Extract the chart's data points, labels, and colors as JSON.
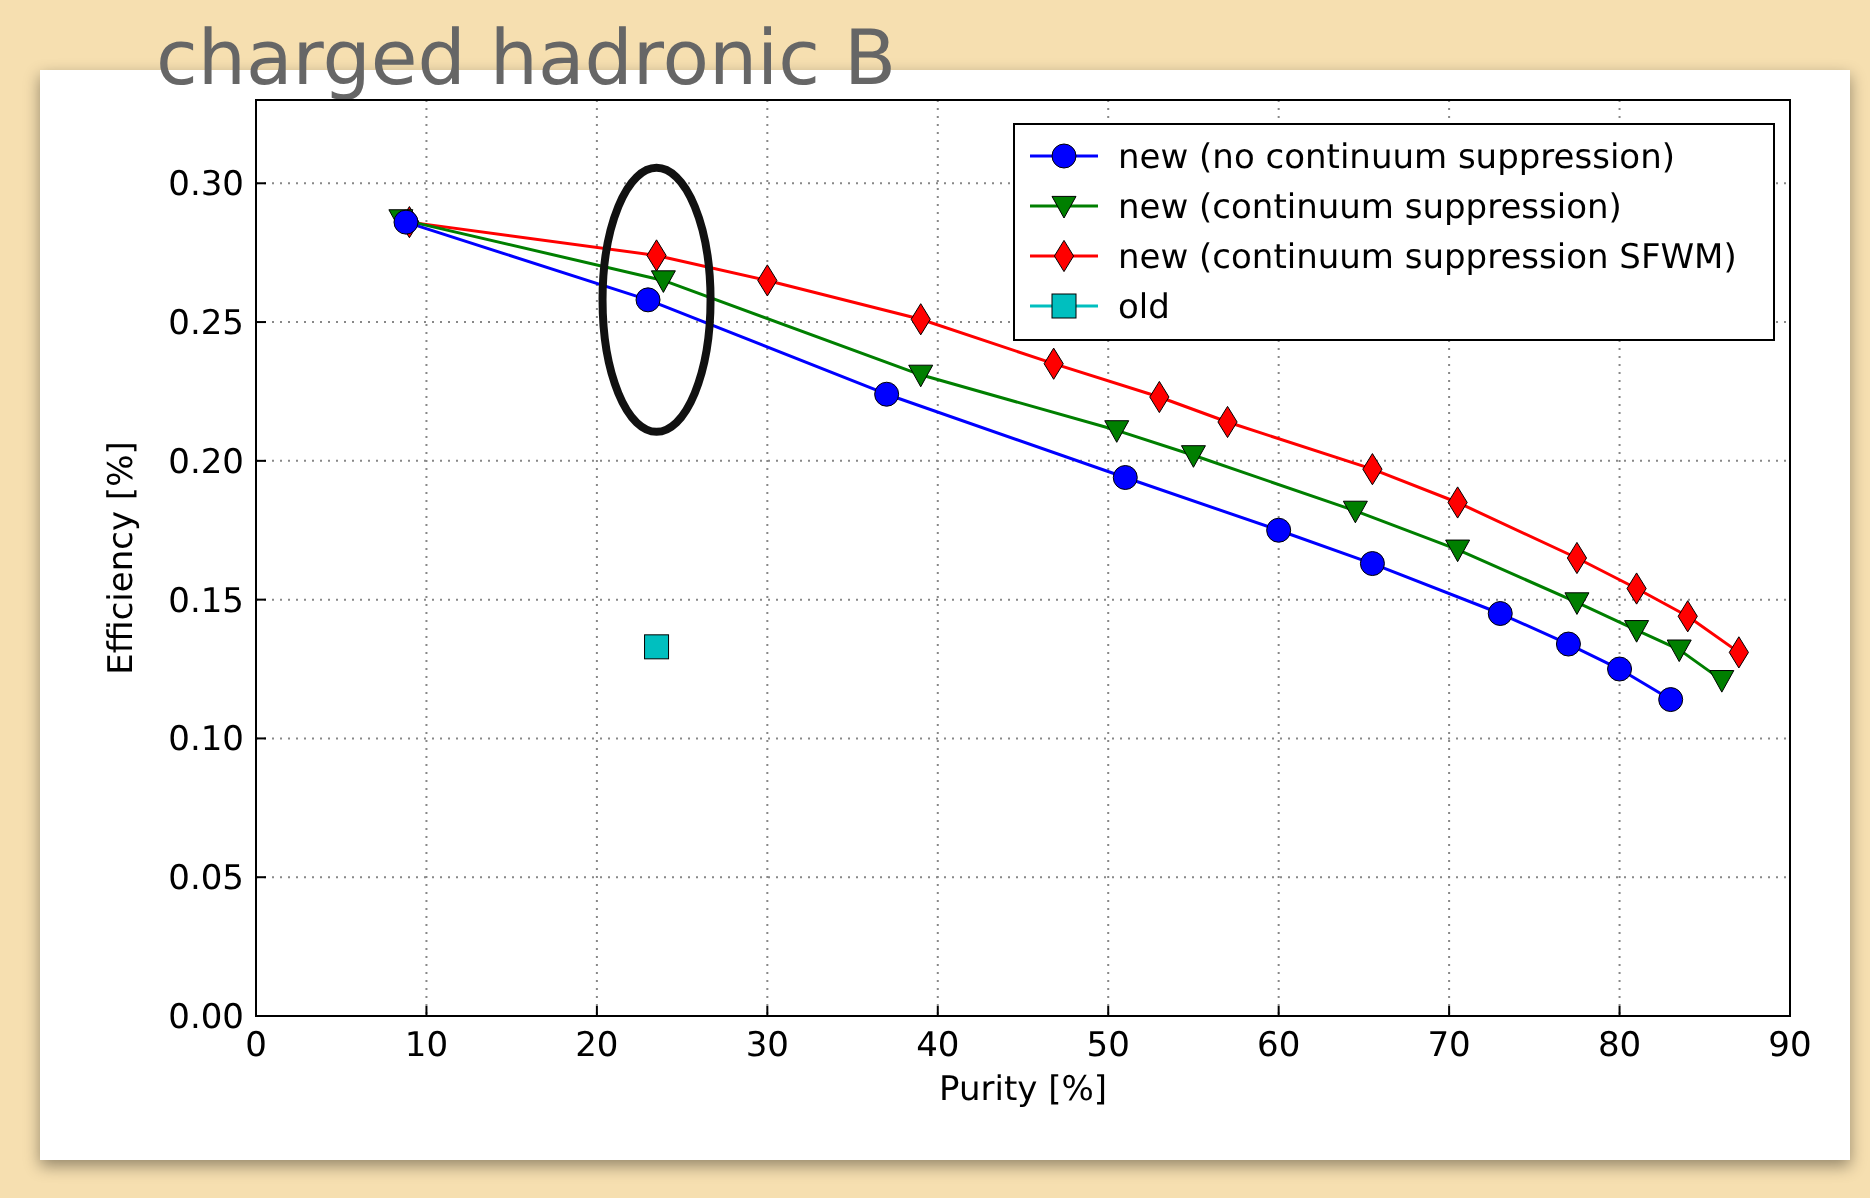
{
  "chart_data": {
    "type": "line",
    "title": "charged hadronic B",
    "xlabel": "Purity [%]",
    "ylabel": "Efficiency [%]",
    "xlim": [
      0,
      90
    ],
    "xticks": [
      0,
      10,
      20,
      30,
      40,
      50,
      60,
      70,
      80,
      90
    ],
    "ylim": [
      0,
      0.33
    ],
    "yticks": [
      {
        "value": 0,
        "label": "0.00"
      },
      0.05,
      {
        "value": 0.1,
        "label": "0.10"
      },
      0.15,
      {
        "value": 0.2,
        "label": "0.20"
      },
      0.25,
      {
        "value": 0.3,
        "label": "0.30"
      }
    ],
    "grid": true,
    "legend": "top right",
    "series": [
      {
        "name": "new (no continuum suppression)",
        "color": "#0000ff",
        "marker": "circle",
        "x": [
          8.8,
          23,
          37,
          51,
          60,
          65.5,
          73,
          77,
          80,
          83
        ],
        "values": [
          0.286,
          0.258,
          0.224,
          0.194,
          0.175,
          0.163,
          0.145,
          0.134,
          0.125,
          0.114
        ]
      },
      {
        "name": "new (continuum suppression)",
        "color": "#007f00",
        "marker": "triangle",
        "x": [
          8.5,
          23.9,
          39,
          50.5,
          55,
          64.5,
          70.5,
          77.5,
          81,
          83.5,
          86
        ],
        "values": [
          0.287,
          0.265,
          0.231,
          0.211,
          0.202,
          0.182,
          0.168,
          0.149,
          0.139,
          0.132,
          0.121
        ]
      },
      {
        "name": "new (continuum suppression SFWM)",
        "color": "#ff0000",
        "marker": "diamond",
        "x": [
          9,
          23.5,
          30,
          39,
          46.8,
          53,
          57,
          65.5,
          70.5,
          77.5,
          81,
          84,
          87
        ],
        "values": [
          0.286,
          0.274,
          0.265,
          0.251,
          0.235,
          0.223,
          0.214,
          0.197,
          0.185,
          0.165,
          0.154,
          0.144,
          0.131
        ]
      },
      {
        "name": "old",
        "color": "#00bfbf",
        "type": "scatter",
        "marker": "square",
        "x": [
          23.5
        ],
        "values": [
          0.133
        ]
      }
    ]
  }
}
